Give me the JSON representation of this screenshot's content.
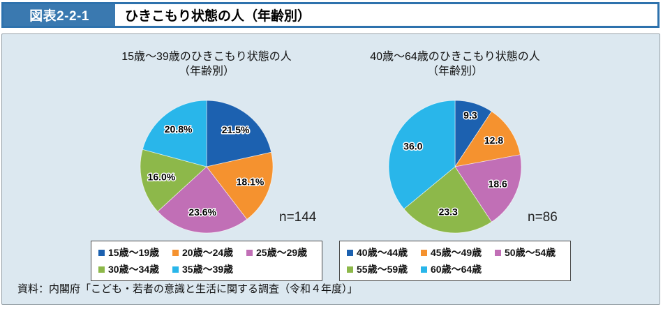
{
  "header": {
    "tag": "図表2-2-1",
    "title": "ひきこもり状態の人（年齢別）"
  },
  "footer": {
    "source": "資料：内閣府「こども・若者の意識と生活に関する調査（令和４年度）」"
  },
  "colors": {
    "header_border": "#2e72ad",
    "header_tag_bg": "#3a79b0",
    "panel_bg": "#dce8f0",
    "blue": "#1c61b0",
    "orange": "#f5922f",
    "purple": "#c16fb6",
    "green": "#8db84a",
    "cyan": "#29b6ea"
  },
  "chart_data": [
    {
      "type": "pie",
      "title": "15歳～39歳のひきこもり状態の人",
      "title_line2": "（年齢別）",
      "n_label": "n=144",
      "legend_position": "bottom",
      "start_angle": "top",
      "direction": "clockwise",
      "slices": [
        {
          "label": "15歳～19歳",
          "value": 21.5,
          "display": "21.5%",
          "color": "#1c61b0"
        },
        {
          "label": "20歳～24歳",
          "value": 18.1,
          "display": "18.1%",
          "color": "#f5922f"
        },
        {
          "label": "25歳～29歳",
          "value": 23.6,
          "display": "23.6%",
          "color": "#c16fb6"
        },
        {
          "label": "30歳～34歳",
          "value": 16.0,
          "display": "16.0%",
          "color": "#8db84a"
        },
        {
          "label": "35歳～39歳",
          "value": 20.8,
          "display": "20.8%",
          "color": "#29b6ea"
        }
      ]
    },
    {
      "type": "pie",
      "title": "40歳～64歳のひきこもり状態の人",
      "title_line2": "（年齢別）",
      "n_label": "n=86",
      "legend_position": "bottom",
      "start_angle": "top",
      "direction": "clockwise",
      "slices": [
        {
          "label": "40歳～44歳",
          "value": 9.3,
          "display": "9.3",
          "color": "#1c61b0",
          "label_r": 0.8
        },
        {
          "label": "45歳～49歳",
          "value": 12.8,
          "display": "12.8",
          "color": "#f5922f"
        },
        {
          "label": "50歳～54歳",
          "value": 18.6,
          "display": "18.6",
          "color": "#c16fb6"
        },
        {
          "label": "55歳～59歳",
          "value": 23.3,
          "display": "23.3",
          "color": "#8db84a"
        },
        {
          "label": "60歳～64歳",
          "value": 36.0,
          "display": "36.0",
          "color": "#29b6ea"
        }
      ]
    }
  ]
}
